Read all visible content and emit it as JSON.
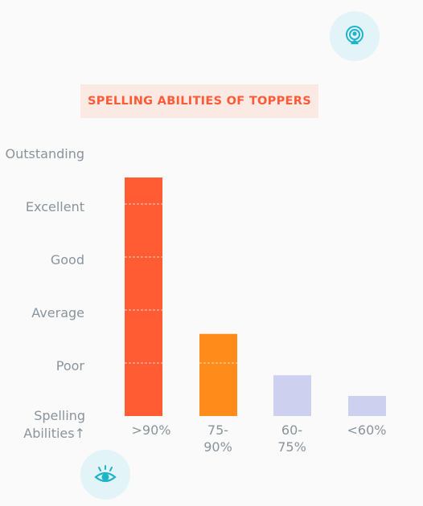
{
  "title": "SPELLING ABILITIES OF TOPPERS",
  "icons": {
    "top": "broadcast-person-icon",
    "bottom": "eye-icon"
  },
  "colors": {
    "accent": "#ff5a36",
    "icon_teal": "#1fb3c9",
    "icon_bg": "#e2f4f7"
  },
  "chart_data": {
    "type": "bar",
    "title": "SPELLING ABILITIES OF TOPPERS",
    "ylabel": "Spelling Abilities↑",
    "y_levels": [
      "Poor",
      "Average",
      "Good",
      "Excellent",
      "Outstanding"
    ],
    "ylim": [
      0,
      5
    ],
    "categories": [
      ">90%",
      "75-\n90%",
      "60-\n75%",
      "<60%"
    ],
    "values": [
      4.5,
      1.55,
      0.77,
      0.38
    ],
    "bar_colors": [
      "#ff5c34",
      "#ff8c1a",
      "#cdd0ee",
      "#cdd0ee"
    ],
    "grid": "dashed lines inside bars"
  }
}
